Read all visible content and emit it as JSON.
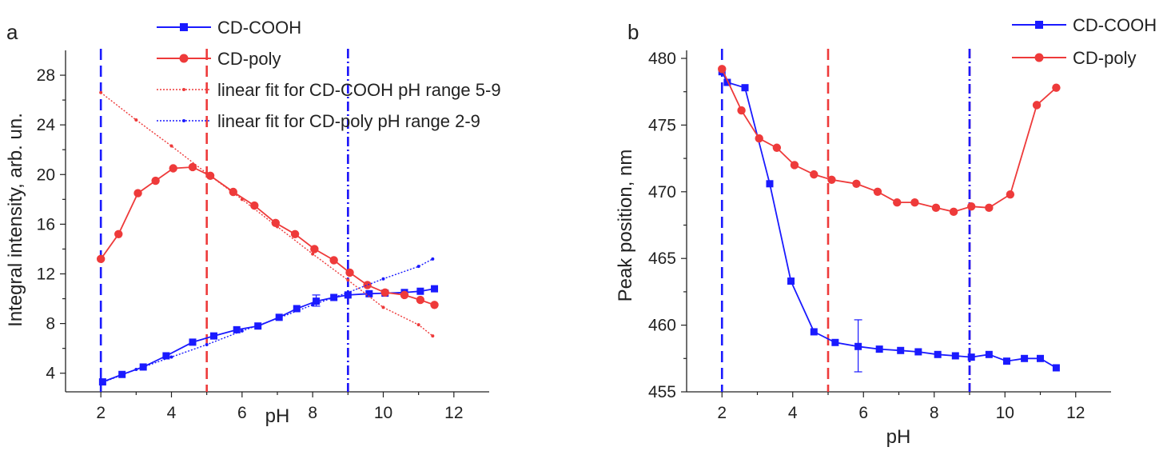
{
  "chart_data": [
    {
      "type": "line",
      "panel_label": "a",
      "xlabel": "pH",
      "ylabel": "Integral intensity, arb. un.",
      "xlim": [
        1,
        13
      ],
      "ylim": [
        2.5,
        30
      ],
      "xticks": [
        2,
        4,
        6,
        8,
        10,
        12
      ],
      "yticks": [
        4,
        8,
        12,
        16,
        20,
        24,
        28
      ],
      "legend_position": "top-right",
      "series": [
        {
          "name": "CD-COOH",
          "color": "#1a1aff",
          "style": "solid",
          "marker": "square",
          "x": [
            2.05,
            2.6,
            3.2,
            3.85,
            4.6,
            5.2,
            5.85,
            6.45,
            7.05,
            7.55,
            8.1,
            8.6,
            9.0,
            9.6,
            10.05,
            10.6,
            11.05,
            11.45
          ],
          "y": [
            3.3,
            3.9,
            4.5,
            5.4,
            6.5,
            7.0,
            7.5,
            7.8,
            8.5,
            9.2,
            9.8,
            10.1,
            10.3,
            10.4,
            10.45,
            10.5,
            10.6,
            10.8
          ]
        },
        {
          "name": "CD-poly",
          "color": "#ee3a3a",
          "style": "solid",
          "marker": "circle",
          "x": [
            2.0,
            2.5,
            3.05,
            3.55,
            4.05,
            4.6,
            5.1,
            5.75,
            6.35,
            6.95,
            7.5,
            8.05,
            8.6,
            9.05,
            9.55,
            10.05,
            10.6,
            11.05,
            11.45
          ],
          "y": [
            13.2,
            15.2,
            18.5,
            19.5,
            20.5,
            20.6,
            19.9,
            18.6,
            17.5,
            16.1,
            15.2,
            14.0,
            13.1,
            12.1,
            11.1,
            10.5,
            10.3,
            9.9,
            9.5
          ]
        },
        {
          "name": "linear fit for CD-COOH pH range 5-9",
          "color": "#ee3a3a",
          "style": "dotted",
          "marker": "dot",
          "x": [
            2.0,
            3.0,
            4.0,
            5.0,
            6.0,
            7.0,
            8.0,
            9.0,
            10.0,
            11.0,
            11.4
          ],
          "y": [
            26.6,
            24.4,
            22.3,
            20.1,
            18.0,
            15.8,
            13.6,
            11.5,
            9.3,
            7.9,
            7.0
          ]
        },
        {
          "name": "linear fit for CD-poly pH range 2-9",
          "color": "#1a1aff",
          "style": "dotted",
          "marker": "dot",
          "x": [
            2.0,
            3.0,
            4.0,
            5.0,
            6.0,
            7.0,
            8.0,
            9.0,
            10.0,
            11.0,
            11.4
          ],
          "y": [
            3.2,
            4.3,
            5.3,
            6.3,
            7.4,
            8.4,
            9.5,
            10.5,
            11.6,
            12.6,
            13.2
          ]
        }
      ],
      "vertical_lines": [
        {
          "x": 2,
          "color": "#1a1aff",
          "style": "dashed"
        },
        {
          "x": 5,
          "color": "#ee3a3a",
          "style": "dashed"
        },
        {
          "x": 9,
          "color": "#ee3a3a",
          "style": "dashdot"
        },
        {
          "x": 9,
          "color": "#1a1aff",
          "style": "dashdot"
        }
      ],
      "error_bars": [
        {
          "series": "CD-COOH",
          "x": 8.1,
          "y": 9.8,
          "low": 9.4,
          "high": 10.3
        }
      ]
    },
    {
      "type": "line",
      "panel_label": "b",
      "xlabel": "pH",
      "ylabel": "Peak position, nm",
      "xlim": [
        1,
        13
      ],
      "ylim": [
        455,
        480.6
      ],
      "xticks": [
        2,
        4,
        6,
        8,
        10,
        12
      ],
      "yticks": [
        455,
        460,
        465,
        470,
        475,
        480
      ],
      "legend_position": "top-right",
      "series": [
        {
          "name": "CD-COOH",
          "color": "#1a1aff",
          "style": "solid",
          "marker": "square",
          "x": [
            2.0,
            2.15,
            2.65,
            3.35,
            3.95,
            4.6,
            5.2,
            5.85,
            6.45,
            7.05,
            7.55,
            8.1,
            8.6,
            9.05,
            9.55,
            10.05,
            10.55,
            11.0,
            11.45
          ],
          "y": [
            479.0,
            478.2,
            477.8,
            470.6,
            463.3,
            459.5,
            458.7,
            458.4,
            458.2,
            458.1,
            458.0,
            457.8,
            457.7,
            457.6,
            457.8,
            457.3,
            457.5,
            457.5,
            456.8
          ]
        },
        {
          "name": "CD-poly",
          "color": "#ee3a3a",
          "style": "solid",
          "marker": "circle",
          "x": [
            2.0,
            2.55,
            3.05,
            3.55,
            4.05,
            4.6,
            5.1,
            5.8,
            6.4,
            6.95,
            7.45,
            8.05,
            8.55,
            9.05,
            9.55,
            10.15,
            10.9,
            11.45
          ],
          "y": [
            479.2,
            476.1,
            474.0,
            473.3,
            472.0,
            471.3,
            470.9,
            470.6,
            470.0,
            469.2,
            469.2,
            468.8,
            468.5,
            468.9,
            468.8,
            469.8,
            476.5,
            477.8
          ]
        }
      ],
      "vertical_lines": [
        {
          "x": 2,
          "color": "#1a1aff",
          "style": "dashed"
        },
        {
          "x": 5,
          "color": "#ee3a3a",
          "style": "dashed"
        },
        {
          "x": 9,
          "color": "#ee3a3a",
          "style": "dashdot"
        },
        {
          "x": 9,
          "color": "#1a1aff",
          "style": "dashdot"
        }
      ],
      "error_bars": [
        {
          "series": "CD-COOH",
          "x": 5.85,
          "y": 458.4,
          "low": 456.5,
          "high": 460.4
        }
      ]
    }
  ]
}
